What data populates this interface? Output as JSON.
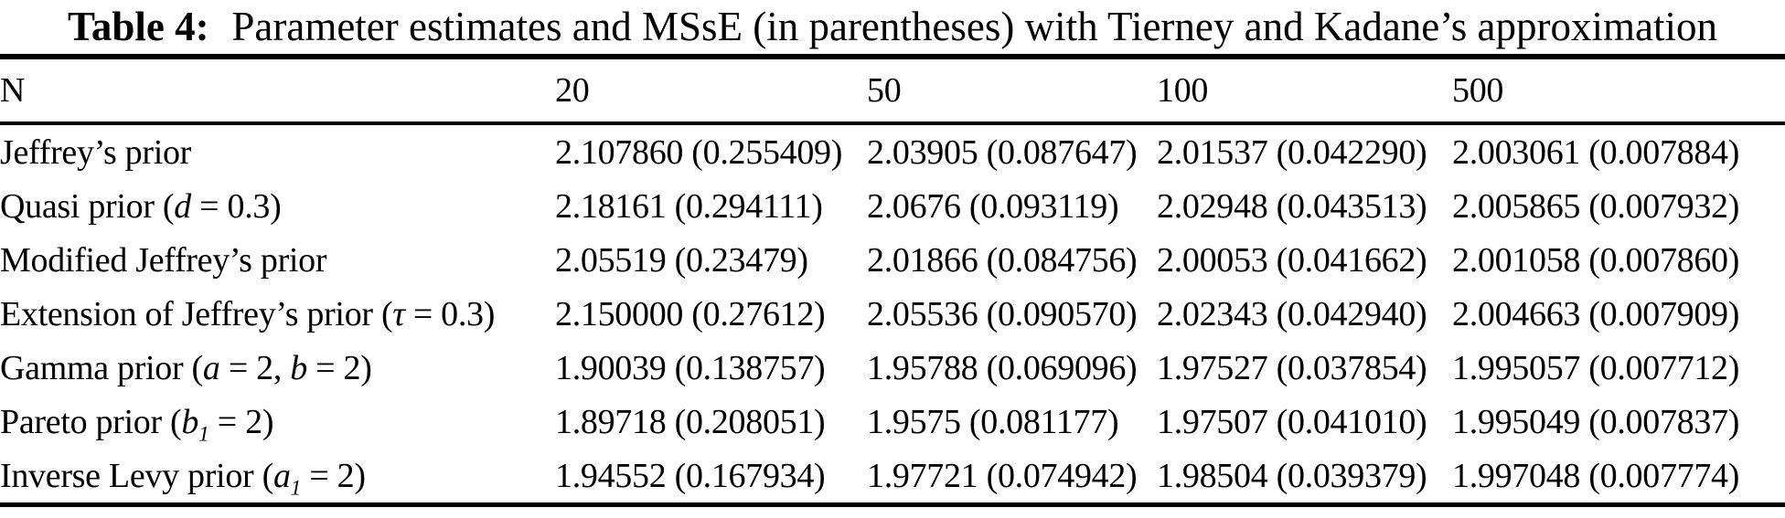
{
  "title": {
    "tag": "Table 4:",
    "text": "Parameter estimates and MSsE (in parentheses) with Tierney and Kadane’s approximation"
  },
  "table": {
    "header": [
      "N",
      "20",
      "50",
      "100",
      "500"
    ],
    "rows": [
      {
        "label": [
          {
            "t": "Jeffrey’s prior"
          }
        ],
        "values": [
          "2.107860 (0.255409)",
          "2.03905 (0.087647)",
          "2.01537 (0.042290)",
          "2.003061 (0.007884)"
        ]
      },
      {
        "label": [
          {
            "t": "Quasi prior ("
          },
          {
            "t": "d",
            "s": "i"
          },
          {
            "t": " = 0.3)"
          }
        ],
        "values": [
          "2.18161 (0.294111)",
          "2.0676 (0.093119)",
          "2.02948 (0.043513)",
          "2.005865 (0.007932)"
        ]
      },
      {
        "label": [
          {
            "t": "Modified Jeffrey’s prior"
          }
        ],
        "values": [
          "2.05519 (0.23479)",
          "2.01866 (0.084756)",
          "2.00053 (0.041662)",
          "2.001058 (0.007860)"
        ]
      },
      {
        "label": [
          {
            "t": "Extension of Jeffrey’s prior ("
          },
          {
            "t": "τ",
            "s": "i"
          },
          {
            "t": " = 0.3)"
          }
        ],
        "values": [
          "2.150000 (0.27612)",
          "2.05536 (0.090570)",
          "2.02343 (0.042940)",
          "2.004663 (0.007909)"
        ]
      },
      {
        "label": [
          {
            "t": "Gamma prior ("
          },
          {
            "t": "a",
            "s": "i"
          },
          {
            "t": " = 2, "
          },
          {
            "t": "b",
            "s": "i"
          },
          {
            "t": " = 2)"
          }
        ],
        "values": [
          "1.90039 (0.138757)",
          "1.95788 (0.069096)",
          "1.97527 (0.037854)",
          "1.995057 (0.007712)"
        ]
      },
      {
        "label": [
          {
            "t": "Pareto prior ("
          },
          {
            "t": "b",
            "s": "i"
          },
          {
            "t": "1",
            "s": "sub"
          },
          {
            "t": " = 2)"
          }
        ],
        "values": [
          "1.89718 (0.208051)",
          "1.9575 (0.081177)",
          "1.97507 (0.041010)",
          "1.995049 (0.007837)"
        ]
      },
      {
        "label": [
          {
            "t": "Inverse Levy prior ("
          },
          {
            "t": "a",
            "s": "i"
          },
          {
            "t": "1",
            "s": "sub"
          },
          {
            "t": " = 2)"
          }
        ],
        "values": [
          "1.94552 (0.167934)",
          "1.97721 (0.074942)",
          "1.98504 (0.039379)",
          "1.997048 (0.007774)"
        ]
      }
    ]
  }
}
